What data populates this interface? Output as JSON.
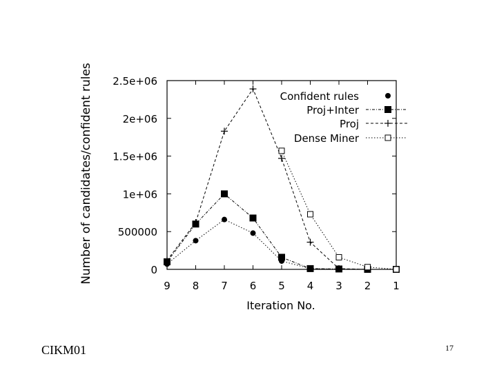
{
  "footer": {
    "left": "CIKM01",
    "page_number": "17"
  },
  "chart_data": {
    "type": "line",
    "title": "",
    "xlabel": "Iteration No.",
    "ylabel": "Number of candidates/confident rules",
    "categories": [
      "9",
      "8",
      "7",
      "6",
      "5",
      "4",
      "3",
      "2",
      "1"
    ],
    "y_tick_labels": [
      "0",
      "500000",
      "1e+06",
      "1.5e+06",
      "2e+06",
      "2.5e+06"
    ],
    "y_ticks": [
      0,
      500000,
      1000000,
      1500000,
      2000000,
      2500000
    ],
    "ylim": [
      0,
      2500000
    ],
    "grid": false,
    "legend_position": "top-right",
    "series": [
      {
        "name": "Confident rules",
        "marker": "circle-filled",
        "line": "dotted",
        "values": [
          70000,
          380000,
          660000,
          480000,
          110000,
          10000,
          2000,
          0,
          0
        ]
      },
      {
        "name": "Proj+Inter",
        "marker": "square-filled",
        "line": "dash-dot",
        "values": [
          100000,
          600000,
          1000000,
          680000,
          160000,
          10000,
          5000,
          0,
          0
        ]
      },
      {
        "name": "Proj",
        "marker": "plus",
        "line": "dashed",
        "values": [
          120000,
          620000,
          1830000,
          2390000,
          1470000,
          360000,
          10000,
          0,
          0
        ]
      },
      {
        "name": "Dense Miner",
        "marker": "square-open",
        "line": "dotted",
        "values": [
          null,
          null,
          null,
          null,
          1570000,
          730000,
          160000,
          30000,
          0
        ]
      }
    ]
  }
}
